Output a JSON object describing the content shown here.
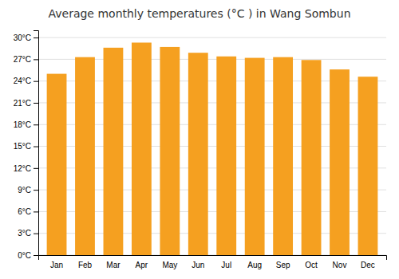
{
  "chart_data": {
    "type": "bar",
    "title": "Average monthly temperatures (°C ) in Wang Sombun",
    "categories": [
      "Jan",
      "Feb",
      "Mar",
      "Apr",
      "May",
      "Jun",
      "Jul",
      "Aug",
      "Sep",
      "Oct",
      "Nov",
      "Dec"
    ],
    "values": [
      25.0,
      27.3,
      28.6,
      29.3,
      28.7,
      27.9,
      27.4,
      27.2,
      27.3,
      26.9,
      25.6,
      24.6
    ],
    "color": "#F5A020",
    "ylim": [
      0,
      31
    ],
    "yticks": [
      {
        "value": 0,
        "label": "0°C"
      },
      {
        "value": 3,
        "label": "3°C"
      },
      {
        "value": 6,
        "label": "6°C"
      },
      {
        "value": 9,
        "label": "9°C"
      },
      {
        "value": 12,
        "label": "12°C"
      },
      {
        "value": 15,
        "label": "15°C"
      },
      {
        "value": 18,
        "label": "18°C"
      },
      {
        "value": 21,
        "label": "21°C"
      },
      {
        "value": 24,
        "label": "24°C"
      },
      {
        "value": 27,
        "label": "27°C"
      },
      {
        "value": 30,
        "label": "30°C"
      }
    ],
    "grid": true
  }
}
